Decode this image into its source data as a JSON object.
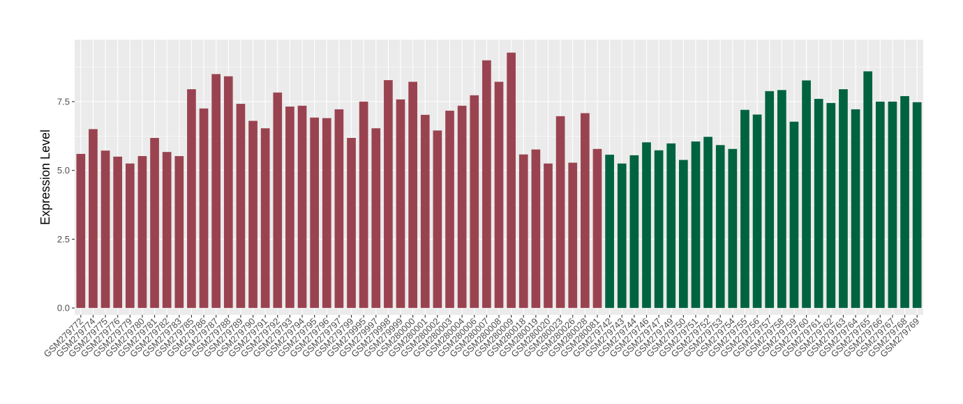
{
  "chart_data": {
    "type": "bar",
    "ylabel": "Expression Level",
    "xlabel": "",
    "ylim": [
      -0.25,
      9.75
    ],
    "yticks": [
      0.0,
      2.5,
      5.0,
      7.5
    ],
    "ytick_labels": [
      "0.0",
      "2.5",
      "5.0",
      "7.5"
    ],
    "grid": true,
    "legend": "none",
    "colors": {
      "group1": "#9a4350",
      "group2": "#006340",
      "panel": "#ebebeb",
      "grid": "#ffffff"
    },
    "categories": [
      "GSM279772",
      "GSM279774",
      "GSM279775",
      "GSM279776",
      "GSM279779",
      "GSM279780",
      "GSM279781",
      "GSM279782",
      "GSM279783",
      "GSM279785",
      "GSM279786",
      "GSM279787",
      "GSM279788",
      "GSM279789",
      "GSM279790",
      "GSM279791",
      "GSM279792",
      "GSM279793",
      "GSM279794",
      "GSM279795",
      "GSM279796",
      "GSM279797",
      "GSM279799",
      "GSM279995",
      "GSM279997",
      "GSM279998",
      "GSM279999",
      "GSM280000",
      "GSM280001",
      "GSM280002",
      "GSM280003",
      "GSM280004",
      "GSM280006",
      "GSM280007",
      "GSM280008",
      "GSM280009",
      "GSM280018",
      "GSM280019",
      "GSM280020",
      "GSM280023",
      "GSM280026",
      "GSM280028",
      "GSM280081",
      "GSM279742",
      "GSM279743",
      "GSM279744",
      "GSM279746",
      "GSM279747",
      "GSM279749",
      "GSM279750",
      "GSM279751",
      "GSM279752",
      "GSM279753",
      "GSM279754",
      "GSM279755",
      "GSM279756",
      "GSM279757",
      "GSM279758",
      "GSM279759",
      "GSM279760",
      "GSM279761",
      "GSM279762",
      "GSM279763",
      "GSM279764",
      "GSM279765",
      "GSM279766",
      "GSM279767",
      "GSM279768",
      "GSM279769"
    ],
    "values": [
      5.6,
      6.5,
      5.72,
      5.5,
      5.25,
      5.52,
      6.18,
      5.67,
      5.52,
      7.95,
      7.25,
      8.5,
      8.42,
      7.42,
      6.8,
      6.53,
      7.83,
      7.32,
      7.35,
      6.92,
      6.9,
      7.22,
      6.18,
      7.5,
      6.53,
      8.28,
      7.58,
      8.22,
      7.02,
      6.45,
      7.17,
      7.35,
      7.73,
      9.0,
      8.22,
      9.28,
      5.58,
      5.76,
      5.25,
      6.97,
      5.28,
      7.08,
      5.78,
      5.57,
      5.25,
      5.55,
      6.02,
      5.73,
      5.98,
      5.38,
      6.05,
      6.22,
      5.92,
      5.78,
      7.2,
      7.03,
      7.88,
      7.92,
      6.77,
      8.27,
      7.6,
      7.45,
      7.95,
      7.22,
      8.6,
      7.5,
      7.5,
      7.7,
      7.48
    ],
    "series_groups": [
      {
        "start": 0,
        "end": 42,
        "color_key": "group1"
      },
      {
        "start": 43,
        "end": 68,
        "color_key": "group2"
      }
    ]
  }
}
